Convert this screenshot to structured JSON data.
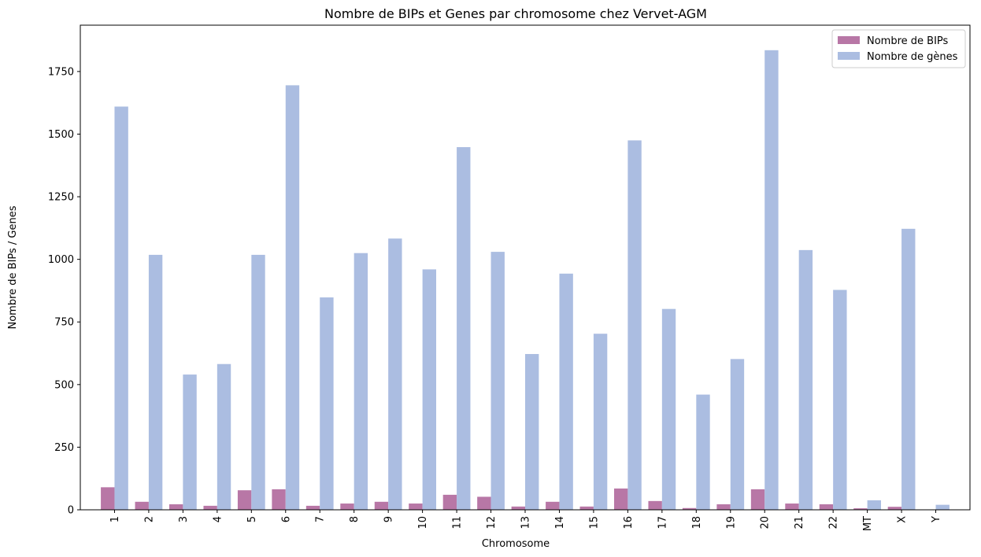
{
  "chart_data": {
    "type": "bar",
    "title": "Nombre de BIPs et Genes par chromosome chez Vervet-AGM",
    "xlabel": "Chromosome",
    "ylabel": "Nombre de BIPs / Genes",
    "ylim": [
      0,
      1935
    ],
    "yticks": [
      0,
      250,
      500,
      750,
      1000,
      1250,
      1500,
      1750
    ],
    "categories": [
      "1",
      "2",
      "3",
      "4",
      "5",
      "6",
      "7",
      "8",
      "9",
      "10",
      "11",
      "12",
      "13",
      "14",
      "15",
      "16",
      "17",
      "18",
      "19",
      "20",
      "21",
      "22",
      "MT",
      "X",
      "Y"
    ],
    "series": [
      {
        "name": "Nombre de BIPs",
        "color": "#b877a6",
        "values": [
          90,
          32,
          22,
          16,
          78,
          82,
          16,
          25,
          32,
          25,
          60,
          52,
          13,
          32,
          13,
          85,
          35,
          7,
          22,
          82,
          25,
          22,
          6,
          12,
          0
        ]
      },
      {
        "name": "Nombre de gènes",
        "color": "#abbde1",
        "values": [
          1610,
          1018,
          540,
          582,
          1018,
          1695,
          848,
          1025,
          1083,
          960,
          1448,
          1030,
          622,
          943,
          703,
          1475,
          802,
          460,
          602,
          1835,
          1037,
          878,
          38,
          1122,
          20
        ]
      }
    ],
    "legend": "top-right",
    "grid": false
  }
}
